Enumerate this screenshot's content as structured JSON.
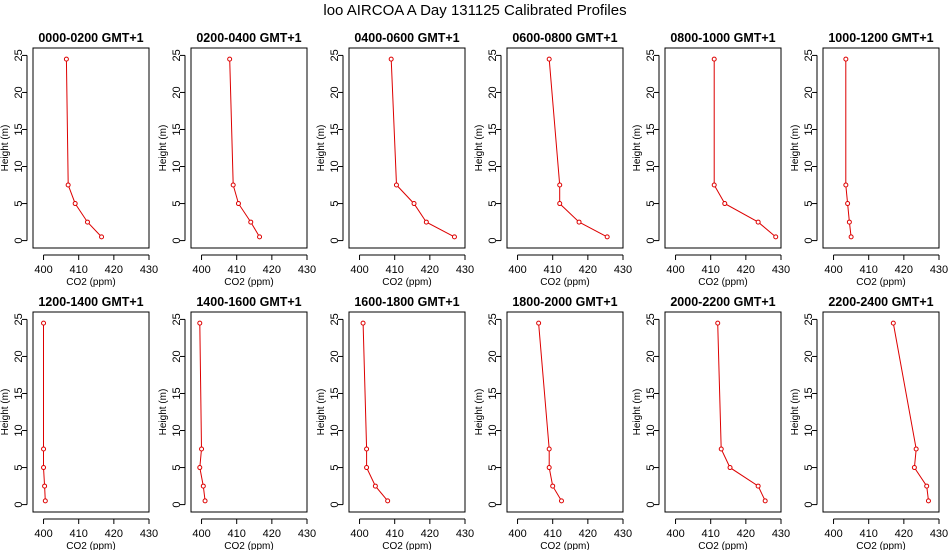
{
  "figure_title": "loo AIRCOA A  Day 131125  Calibrated Profiles",
  "chart_data": [
    {
      "type": "line",
      "title": "0000-0200 GMT+1",
      "xlabel": "CO2 (ppm)",
      "ylabel": "Height (m)",
      "xlim": [
        397,
        430
      ],
      "ylim": [
        -1,
        26
      ],
      "xticks": [
        400,
        410,
        420,
        430
      ],
      "yticks": [
        0,
        5,
        10,
        15,
        20,
        25
      ],
      "grid": false,
      "series": [
        {
          "x": [
            416.5,
            412.5,
            409.0,
            407.0,
            406.5
          ],
          "y": [
            0.5,
            2.5,
            5.0,
            7.5,
            24.5
          ],
          "color": "#dd0000"
        }
      ]
    },
    {
      "type": "line",
      "title": "0200-0400 GMT+1",
      "xlabel": "CO2 (ppm)",
      "ylabel": "Height (m)",
      "xlim": [
        397,
        430
      ],
      "ylim": [
        -1,
        26
      ],
      "xticks": [
        400,
        410,
        420,
        430
      ],
      "yticks": [
        0,
        5,
        10,
        15,
        20,
        25
      ],
      "grid": false,
      "series": [
        {
          "x": [
            416.5,
            414.0,
            410.5,
            409.0,
            408.0
          ],
          "y": [
            0.5,
            2.5,
            5.0,
            7.5,
            24.5
          ],
          "color": "#dd0000"
        }
      ]
    },
    {
      "type": "line",
      "title": "0400-0600 GMT+1",
      "xlabel": "CO2 (ppm)",
      "ylabel": "Height (m)",
      "xlim": [
        397,
        430
      ],
      "ylim": [
        -1,
        26
      ],
      "xticks": [
        400,
        410,
        420,
        430
      ],
      "yticks": [
        0,
        5,
        10,
        15,
        20,
        25
      ],
      "grid": false,
      "series": [
        {
          "x": [
            427.0,
            419.0,
            415.5,
            410.5,
            409.0
          ],
          "y": [
            0.5,
            2.5,
            5.0,
            7.5,
            24.5
          ],
          "color": "#dd0000"
        }
      ]
    },
    {
      "type": "line",
      "title": "0600-0800 GMT+1",
      "xlabel": "CO2 (ppm)",
      "ylabel": "Height (m)",
      "xlim": [
        397,
        430
      ],
      "ylim": [
        -1,
        26
      ],
      "xticks": [
        400,
        410,
        420,
        430
      ],
      "yticks": [
        0,
        5,
        10,
        15,
        20,
        25
      ],
      "grid": false,
      "series": [
        {
          "x": [
            425.5,
            417.5,
            412.0,
            412.0,
            409.0
          ],
          "y": [
            0.5,
            2.5,
            5.0,
            7.5,
            24.5
          ],
          "color": "#dd0000"
        }
      ]
    },
    {
      "type": "line",
      "title": "0800-1000 GMT+1",
      "xlabel": "CO2 (ppm)",
      "ylabel": "Height (m)",
      "xlim": [
        397,
        430
      ],
      "ylim": [
        -1,
        26
      ],
      "xticks": [
        400,
        410,
        420,
        430
      ],
      "yticks": [
        0,
        5,
        10,
        15,
        20,
        25
      ],
      "grid": false,
      "series": [
        {
          "x": [
            428.5,
            423.5,
            414.0,
            411.0,
            411.0
          ],
          "y": [
            0.5,
            2.5,
            5.0,
            7.5,
            24.5
          ],
          "color": "#dd0000"
        }
      ]
    },
    {
      "type": "line",
      "title": "1000-1200 GMT+1",
      "xlabel": "CO2 (ppm)",
      "ylabel": "Height (m)",
      "xlim": [
        397,
        430
      ],
      "ylim": [
        -1,
        26
      ],
      "xticks": [
        400,
        410,
        420,
        430
      ],
      "yticks": [
        0,
        5,
        10,
        15,
        20,
        25
      ],
      "grid": false,
      "series": [
        {
          "x": [
            405.0,
            404.5,
            404.0,
            403.5,
            403.5
          ],
          "y": [
            0.5,
            2.5,
            5.0,
            7.5,
            24.5
          ],
          "color": "#dd0000"
        }
      ]
    },
    {
      "type": "line",
      "title": "1200-1400 GMT+1",
      "xlabel": "CO2 (ppm)",
      "ylabel": "Height (m)",
      "xlim": [
        397,
        430
      ],
      "ylim": [
        -1,
        26
      ],
      "xticks": [
        400,
        410,
        420,
        430
      ],
      "yticks": [
        0,
        5,
        10,
        15,
        20,
        25
      ],
      "grid": false,
      "series": [
        {
          "x": [
            400.5,
            400.3,
            400.0,
            400.0,
            400.0
          ],
          "y": [
            0.5,
            2.5,
            5.0,
            7.5,
            24.5
          ],
          "color": "#dd0000"
        }
      ]
    },
    {
      "type": "line",
      "title": "1400-1600 GMT+1",
      "xlabel": "CO2 (ppm)",
      "ylabel": "Height (m)",
      "xlim": [
        397,
        430
      ],
      "ylim": [
        -1,
        26
      ],
      "xticks": [
        400,
        410,
        420,
        430
      ],
      "yticks": [
        0,
        5,
        10,
        15,
        20,
        25
      ],
      "grid": false,
      "series": [
        {
          "x": [
            401.0,
            400.5,
            399.5,
            400.0,
            399.5
          ],
          "y": [
            0.5,
            2.5,
            5.0,
            7.5,
            24.5
          ],
          "color": "#dd0000"
        }
      ]
    },
    {
      "type": "line",
      "title": "1600-1800 GMT+1",
      "xlabel": "CO2 (ppm)",
      "ylabel": "Height (m)",
      "xlim": [
        397,
        430
      ],
      "ylim": [
        -1,
        26
      ],
      "xticks": [
        400,
        410,
        420,
        430
      ],
      "yticks": [
        0,
        5,
        10,
        15,
        20,
        25
      ],
      "grid": false,
      "series": [
        {
          "x": [
            408.0,
            404.5,
            402.0,
            402.0,
            401.0
          ],
          "y": [
            0.5,
            2.5,
            5.0,
            7.5,
            24.5
          ],
          "color": "#dd0000"
        }
      ]
    },
    {
      "type": "line",
      "title": "1800-2000 GMT+1",
      "xlabel": "CO2 (ppm)",
      "ylabel": "Height (m)",
      "xlim": [
        397,
        430
      ],
      "ylim": [
        -1,
        26
      ],
      "xticks": [
        400,
        410,
        420,
        430
      ],
      "yticks": [
        0,
        5,
        10,
        15,
        20,
        25
      ],
      "grid": false,
      "series": [
        {
          "x": [
            412.5,
            410.0,
            409.0,
            409.0,
            406.0
          ],
          "y": [
            0.5,
            2.5,
            5.0,
            7.5,
            24.5
          ],
          "color": "#dd0000"
        }
      ]
    },
    {
      "type": "line",
      "title": "2000-2200 GMT+1",
      "xlabel": "CO2 (ppm)",
      "ylabel": "Height (m)",
      "xlim": [
        397,
        430
      ],
      "ylim": [
        -1,
        26
      ],
      "xticks": [
        400,
        410,
        420,
        430
      ],
      "yticks": [
        0,
        5,
        10,
        15,
        20,
        25
      ],
      "grid": false,
      "series": [
        {
          "x": [
            425.5,
            423.5,
            415.5,
            413.0,
            412.0
          ],
          "y": [
            0.5,
            2.5,
            5.0,
            7.5,
            24.5
          ],
          "color": "#dd0000"
        }
      ]
    },
    {
      "type": "line",
      "title": "2200-2400 GMT+1",
      "xlabel": "CO2 (ppm)",
      "ylabel": "Height (m)",
      "xlim": [
        397,
        430
      ],
      "ylim": [
        -1,
        26
      ],
      "xticks": [
        400,
        410,
        420,
        430
      ],
      "yticks": [
        0,
        5,
        10,
        15,
        20,
        25
      ],
      "grid": false,
      "series": [
        {
          "x": [
            427.0,
            426.5,
            423.0,
            423.5,
            417.0
          ],
          "y": [
            0.5,
            2.5,
            5.0,
            7.5,
            24.5
          ],
          "color": "#dd0000"
        }
      ]
    }
  ]
}
